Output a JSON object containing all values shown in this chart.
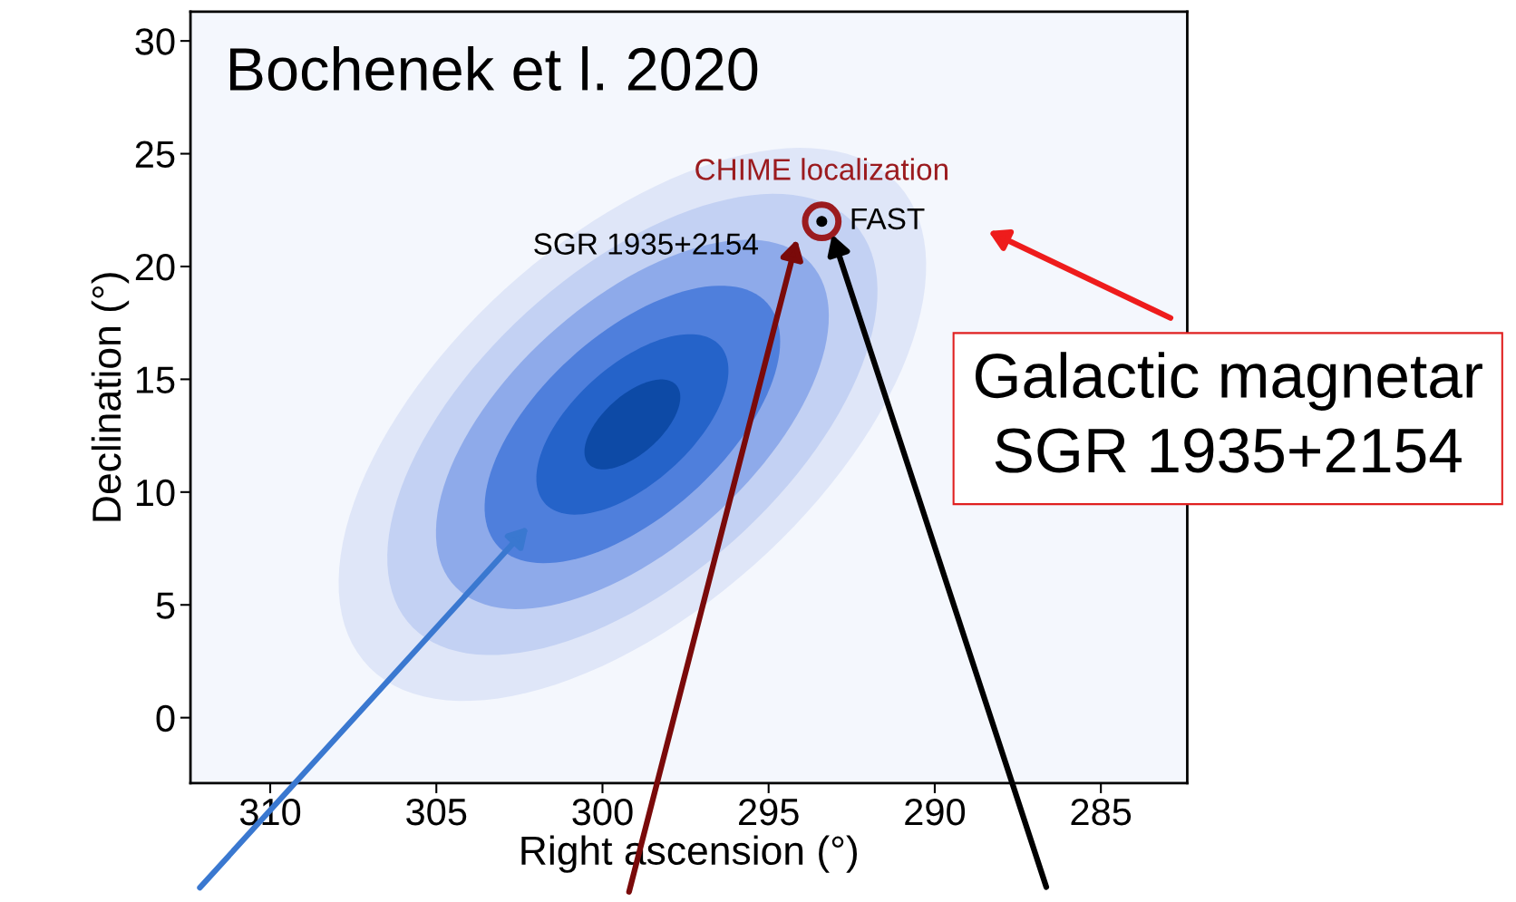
{
  "chart_data": {
    "type": "scatter",
    "xlabel": "Right ascension (°)",
    "ylabel": "Declination (°)",
    "x": [
      293.4
    ],
    "series": [
      {
        "name": "CHIME localization",
        "color": "#9b1b1f",
        "values": [
          22.0
        ]
      },
      {
        "name": "FAST",
        "color": "#000000",
        "values": [
          22.0
        ]
      }
    ],
    "marker": "circle",
    "grid": false,
    "xlim": [
      312.4,
      282.4
    ],
    "xticks": [
      310,
      305,
      300,
      295,
      290,
      285
    ],
    "ylim": [
      -2.9,
      31.3
    ],
    "yticks": [
      0,
      5,
      10,
      15,
      20,
      25,
      30
    ],
    "annotations": [
      "Bochenek et l. 2020",
      {
        "text": "SGR 1935+2154",
        "x": 293.4,
        "y": 22.0
      },
      "Galactic magnetar\nSGR 1935+2154"
    ]
  }
}
